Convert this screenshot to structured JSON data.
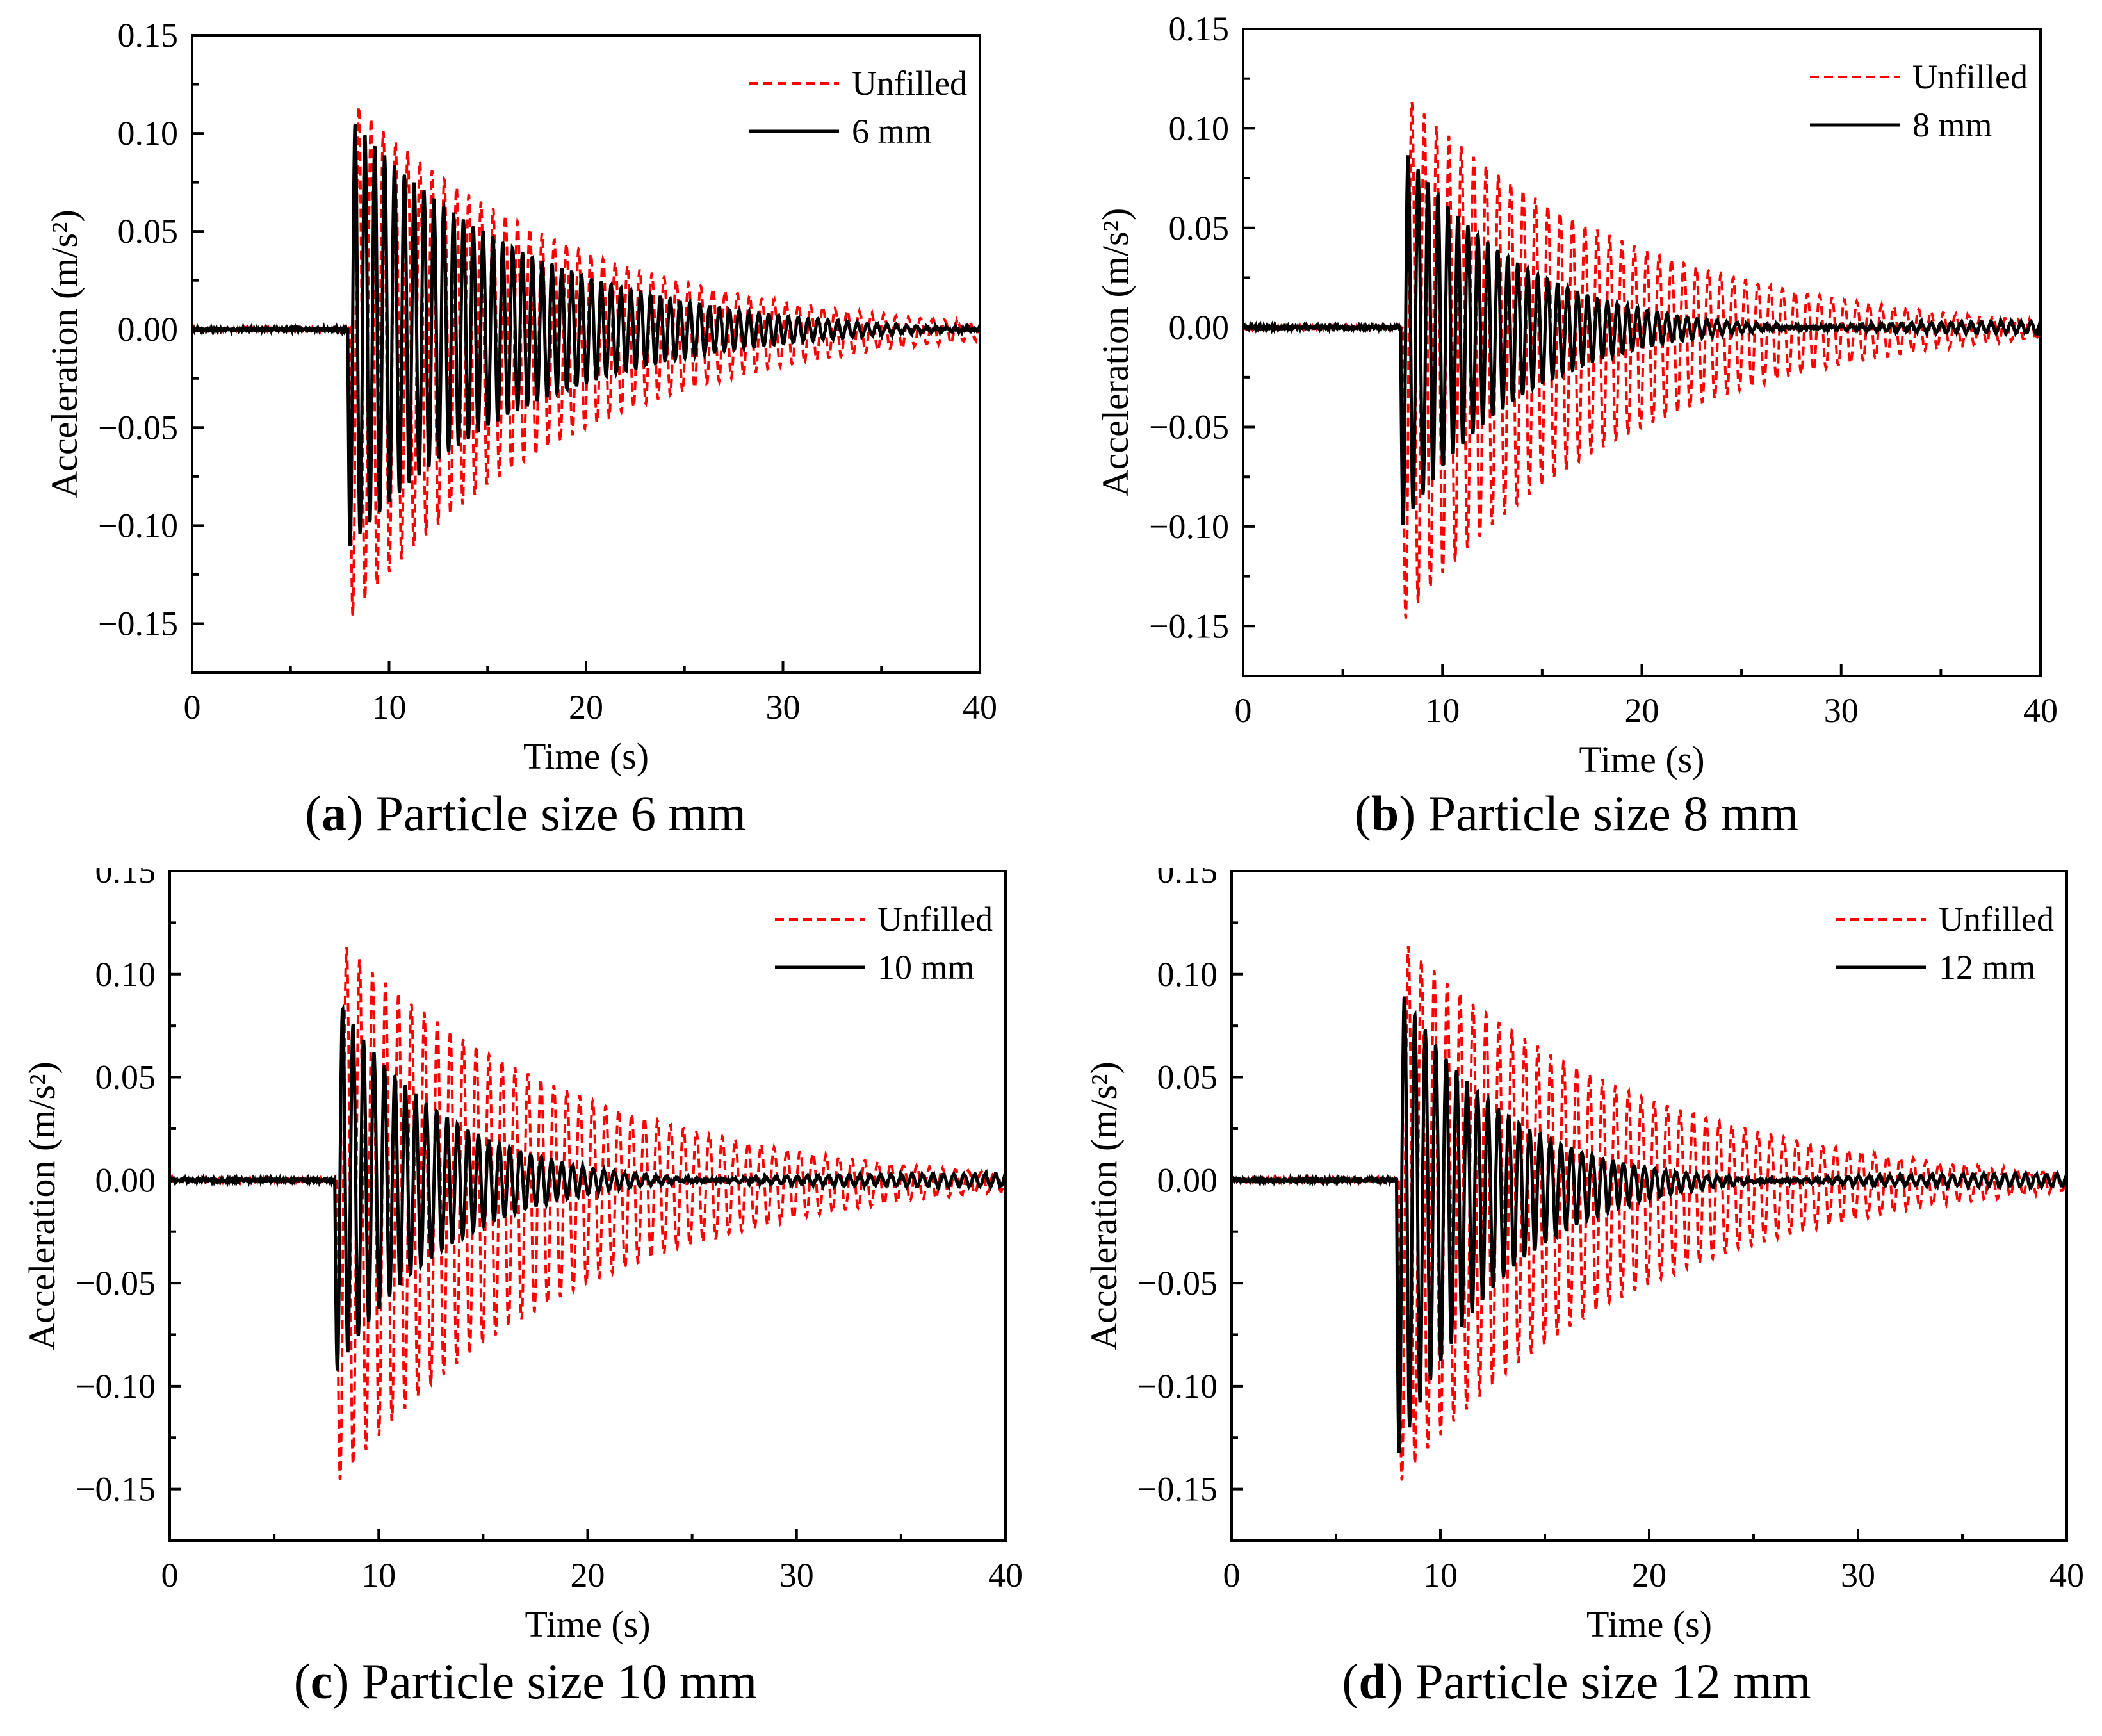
{
  "chart_data": [
    {
      "type": "line",
      "id": "a",
      "caption": {
        "letter": "a",
        "text": "Particle size 6 mm"
      },
      "xlabel": "Time (s)",
      "ylabel": "Acceleration (m/s²)",
      "xlim": [
        0,
        40
      ],
      "ylim": [
        -0.175,
        0.15
      ],
      "xticks": [
        "0",
        "10",
        "20",
        "30",
        "40"
      ],
      "yticks": [
        "0.15",
        "0.10",
        "0.05",
        "0.00",
        "−0.05",
        "−0.10",
        "−0.15"
      ],
      "ytick_values": [
        0.15,
        0.1,
        0.05,
        0.0,
        -0.05,
        -0.1,
        -0.15
      ],
      "legend_position": "top-right",
      "series": [
        {
          "name": "Unfilled",
          "color": "#ff0000",
          "style": "dashed",
          "start_time": 8.0,
          "period": 0.62,
          "peak_max": 0.118,
          "peak_min": -0.148,
          "decay": 0.085,
          "floor": 0.0
        },
        {
          "name": "6 mm",
          "color": "#000000",
          "style": "solid",
          "start_time": 7.9,
          "period": 0.5,
          "peak_max": 0.11,
          "peak_min": -0.112,
          "decay": 0.11,
          "floor": 0.0
        }
      ]
    },
    {
      "type": "line",
      "id": "b",
      "caption": {
        "letter": "b",
        "text": "Particle size 8 mm"
      },
      "xlabel": "Time (s)",
      "ylabel": "Acceleration (m/s²)",
      "xlim": [
        0,
        40
      ],
      "ylim": [
        -0.175,
        0.15
      ],
      "xticks": [
        "0",
        "10",
        "20",
        "30",
        "40"
      ],
      "yticks": [
        "0.15",
        "0.10",
        "0.05",
        "0.00",
        "−0.05",
        "−0.10",
        "−0.15"
      ],
      "ytick_values": [
        0.15,
        0.1,
        0.05,
        0.0,
        -0.05,
        -0.1,
        -0.15
      ],
      "legend_position": "top-right",
      "series": [
        {
          "name": "Unfilled",
          "color": "#ff0000",
          "style": "dashed",
          "start_time": 8.0,
          "period": 0.62,
          "peak_max": 0.118,
          "peak_min": -0.148,
          "decay": 0.085,
          "floor": 0.0
        },
        {
          "name": "8 mm",
          "color": "#000000",
          "style": "solid",
          "start_time": 7.9,
          "period": 0.5,
          "peak_max": 0.093,
          "peak_min": -0.102,
          "decay": 0.17,
          "floor": 0.0
        }
      ]
    },
    {
      "type": "line",
      "id": "c",
      "caption": {
        "letter": "c",
        "text": "Particle size 10 mm"
      },
      "xlabel": "Time (s)",
      "ylabel": "Acceleration (m/s²)",
      "xlim": [
        0,
        40
      ],
      "ylim": [
        -0.175,
        0.15
      ],
      "xticks": [
        "0",
        "10",
        "20",
        "30",
        "40"
      ],
      "yticks": [
        "0.15",
        "0.10",
        "0.05",
        "0.00",
        "−0.05",
        "−0.10",
        "−0.15"
      ],
      "ytick_values": [
        0.15,
        0.1,
        0.05,
        0.0,
        -0.05,
        -0.1,
        -0.15
      ],
      "legend_position": "top-right",
      "series": [
        {
          "name": "Unfilled",
          "color": "#ff0000",
          "style": "dashed",
          "start_time": 8.0,
          "period": 0.62,
          "peak_max": 0.118,
          "peak_min": -0.148,
          "decay": 0.085,
          "floor": 0.0
        },
        {
          "name": "10 mm",
          "color": "#000000",
          "style": "solid",
          "start_time": 7.9,
          "period": 0.5,
          "peak_max": 0.09,
          "peak_min": -0.095,
          "decay": 0.19,
          "floor": 0.0
        }
      ]
    },
    {
      "type": "line",
      "id": "d",
      "caption": {
        "letter": "d",
        "text": "Particle size 12 mm"
      },
      "xlabel": "Time (s)",
      "ylabel": "Acceleration (m/s²)",
      "xlim": [
        0,
        40
      ],
      "ylim": [
        -0.175,
        0.15
      ],
      "xticks": [
        "0",
        "10",
        "20",
        "30",
        "40"
      ],
      "yticks": [
        "0.15",
        "0.10",
        "0.05",
        "0.00",
        "−0.05",
        "−0.10",
        "−0.15"
      ],
      "ytick_values": [
        0.15,
        0.1,
        0.05,
        0.0,
        -0.05,
        -0.1,
        -0.15
      ],
      "legend_position": "top-right",
      "series": [
        {
          "name": "Unfilled",
          "color": "#ff0000",
          "style": "dashed",
          "start_time": 8.0,
          "period": 0.62,
          "peak_max": 0.118,
          "peak_min": -0.148,
          "decay": 0.085,
          "floor": 0.0
        },
        {
          "name": "12 mm",
          "color": "#000000",
          "style": "solid",
          "start_time": 7.9,
          "period": 0.5,
          "peak_max": 0.097,
          "peak_min": -0.136,
          "decay": 0.2,
          "floor": 0.0
        }
      ]
    }
  ]
}
